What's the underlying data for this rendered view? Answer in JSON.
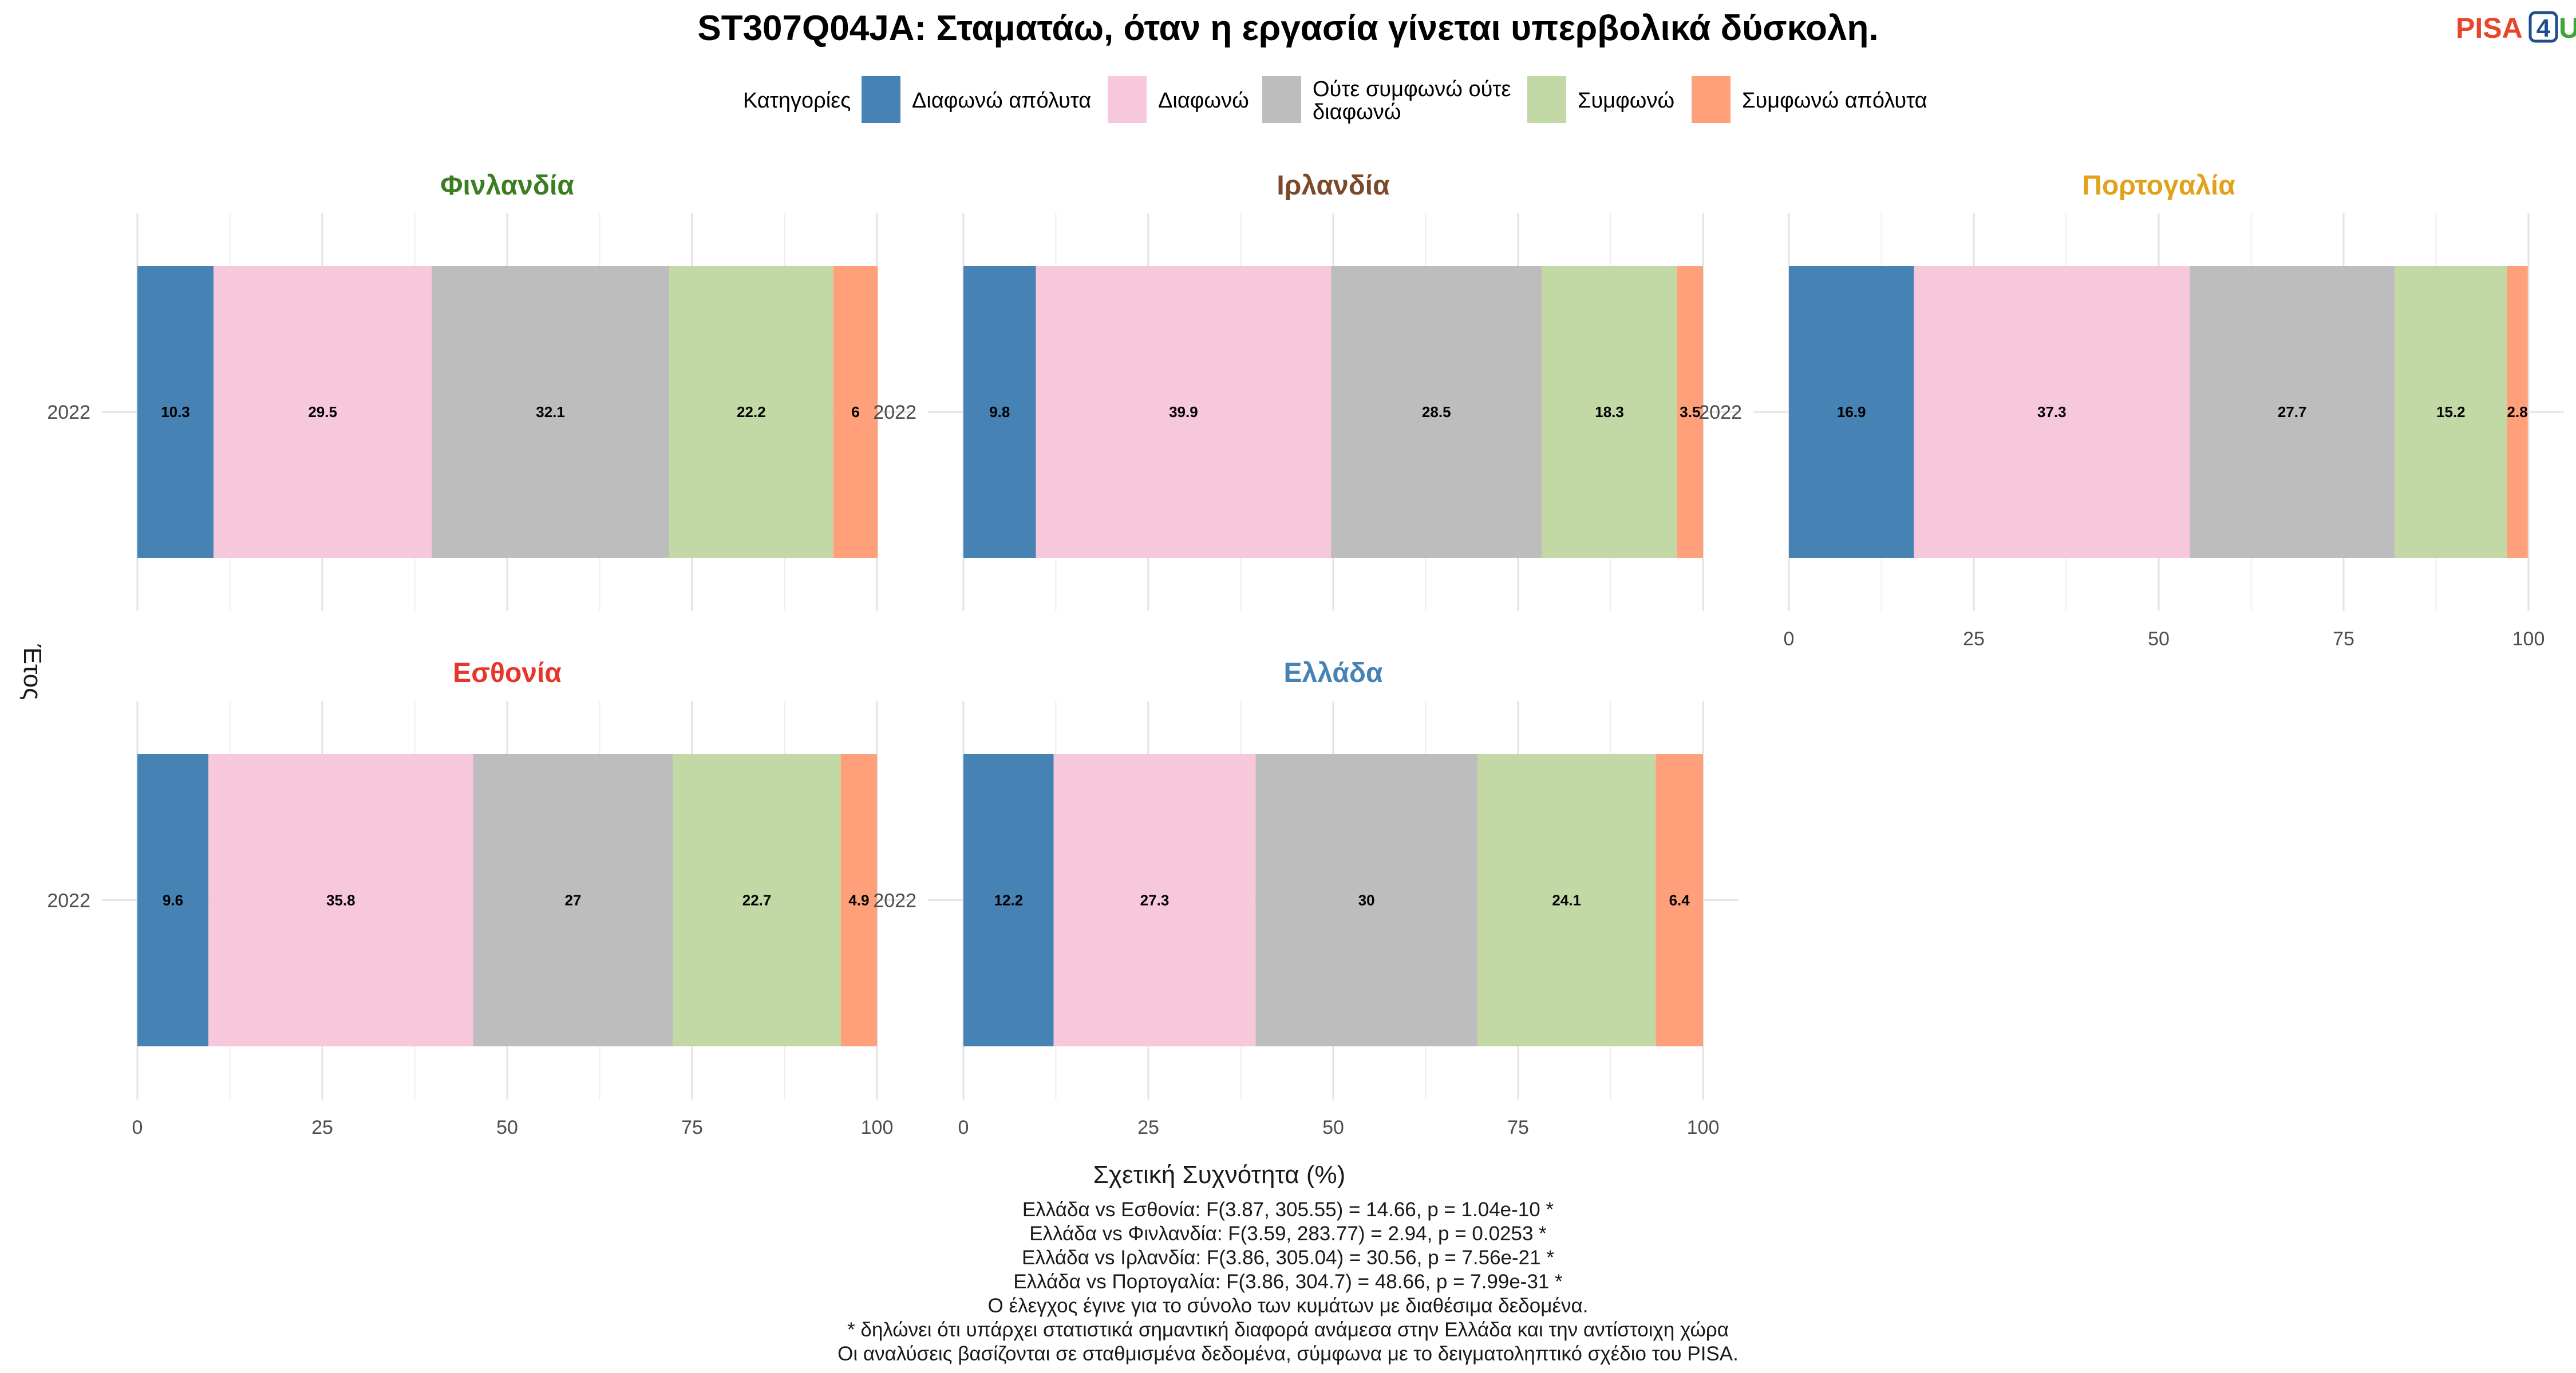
{
  "logo": {
    "left": "PISA",
    "middle": "4",
    "right": "U"
  },
  "chart_data": {
    "type": "bar",
    "orientation": "horizontal-stacked",
    "title": "ST307Q04JA: Σταματάω, όταν η εργασία γίνεται υπερβολικά δύσκολη.",
    "xlabel": "Σχετική Συχνότητα (%)",
    "ylabel": "Έτος",
    "xlim": [
      0,
      100
    ],
    "xticks": [
      "0",
      "25",
      "50",
      "75",
      "100"
    ],
    "legend": {
      "title": "Κατηγορίες",
      "placement": "top",
      "items": [
        {
          "lines": [
            "Διαφωνώ απόλυτα"
          ],
          "color": "#4682B4"
        },
        {
          "lines": [
            "Διαφωνώ"
          ],
          "color": "#F7C8DB"
        },
        {
          "lines": [
            "Ούτε συμφωνώ ούτε",
            "διαφωνώ"
          ],
          "color": "#BDBDBD"
        },
        {
          "lines": [
            "Συμφωνώ"
          ],
          "color": "#C2D8A5"
        },
        {
          "lines": [
            "Συμφωνώ απόλυτα"
          ],
          "color": "#FFA07A"
        }
      ]
    },
    "panels": [
      {
        "name": "Φινλανδία",
        "color": "#3B7D23",
        "year": "2022",
        "values": [
          10.3,
          29.5,
          32.1,
          22.2,
          6
        ]
      },
      {
        "name": "Ιρλανδία",
        "color": "#7B4A2A",
        "year": "2022",
        "values": [
          9.8,
          39.9,
          28.5,
          18.3,
          3.5
        ]
      },
      {
        "name": "Πορτογαλία",
        "color": "#E0A21B",
        "year": "2022",
        "values": [
          16.9,
          37.3,
          27.7,
          15.2,
          2.8
        ]
      },
      {
        "name": "Εσθονία",
        "color": "#E8352B",
        "year": "2022",
        "values": [
          9.6,
          35.8,
          27,
          22.7,
          4.9
        ]
      },
      {
        "name": "Ελλάδα",
        "color": "#4682B4",
        "year": "2022",
        "values": [
          12.2,
          27.3,
          30,
          24.1,
          6.4
        ]
      }
    ],
    "grid": true
  },
  "caption": [
    "Ελλάδα vs Εσθονία: F(3.87, 305.55) = 14.66, p = 1.04e-10 *",
    "Ελλάδα vs Φινλανδία: F(3.59, 283.77) = 2.94, p = 0.0253 *",
    "Ελλάδα vs Ιρλανδία: F(3.86, 305.04) = 30.56, p = 7.56e-21 *",
    "Ελλάδα vs Πορτογαλία: F(3.86, 304.7) = 48.66, p = 7.99e-31 *",
    "Ο έλεγχος έγινε για το σύνολο των κυμάτων με διαθέσιμα δεδομένα.",
    "* δηλώνει ότι υπάρχει στατιστικά σημαντική διαφορά ανάμεσα στην Ελλάδα και την αντίστοιχη χώρα",
    "Οι αναλύσεις βασίζονται σε σταθμισμένα δεδομένα, σύμφωνα με το δειγματοληπτικό σχέδιο του PISA."
  ]
}
